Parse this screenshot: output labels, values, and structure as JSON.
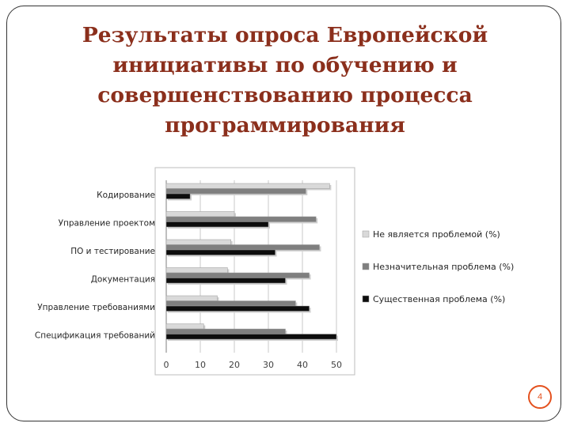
{
  "slide": {
    "title_lines": [
      "Результаты опроса Европейской",
      "инициативы по обучению и",
      "совершенствованию процесса",
      "программирования"
    ],
    "page_number": "4"
  },
  "colors": {
    "title": "#8b2f1c",
    "accent": "#e4511e"
  },
  "chart_data": {
    "type": "bar",
    "orientation": "horizontal",
    "categories": [
      "Кодирование",
      "Управление проектом",
      "ПО и тестирование",
      "Документация",
      "Управление требованиями",
      "Спецификация требований"
    ],
    "series": [
      {
        "name": "Не является проблемой (%)",
        "color": "#d9d9d9",
        "values": [
          48,
          20,
          19,
          18,
          15,
          11
        ]
      },
      {
        "name": "Незначительная проблема (%)",
        "color": "#7f7f7f",
        "values": [
          41,
          44,
          45,
          42,
          38,
          35
        ]
      },
      {
        "name": "Существенная проблема (%)",
        "color": "#0d0d0d",
        "values": [
          7,
          30,
          32,
          35,
          42,
          50
        ]
      }
    ],
    "xlim": [
      0,
      50
    ],
    "xticks": [
      "0",
      "10",
      "20",
      "30",
      "40",
      "50"
    ],
    "grid": true,
    "legend_position": "right"
  }
}
